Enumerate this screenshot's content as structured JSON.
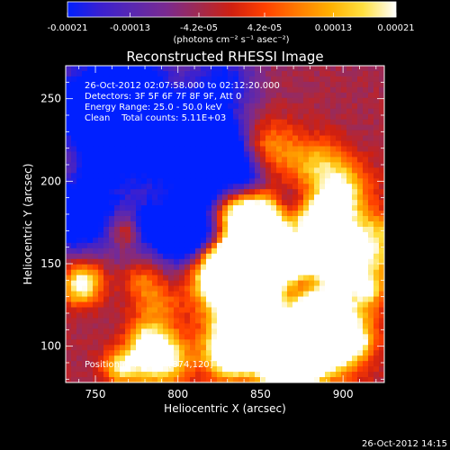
{
  "colorbar": {
    "tick_labels": [
      "-0.00021",
      "-0.00013",
      "-4.2e-05",
      "4.2e-05",
      "0.00013",
      "0.00021"
    ],
    "tick_values": [
      -0.00021,
      -0.00013,
      -4.2e-05,
      4.2e-05,
      0.00013,
      0.00021
    ],
    "range": [
      -0.00021,
      0.00021
    ],
    "unit_label": "(photons cm⁻² s⁻¹ asec⁻²)",
    "colormap": [
      "#0020ff",
      "#3a20d0",
      "#5a28b0",
      "#7a2a90",
      "#a02a50",
      "#d02010",
      "#ff4000",
      "#ff7a00",
      "#ffb000",
      "#ffe040",
      "#ffffff"
    ]
  },
  "chart_data": {
    "type": "heatmap",
    "title": "Reconstructed RHESSI Image",
    "xlabel": "Heliocentric X (arcsec)",
    "ylabel": "Heliocentric Y (arcsec)",
    "xlim": [
      732,
      925
    ],
    "ylim": [
      78,
      270
    ],
    "x_ticks": [
      750,
      800,
      850,
      900
    ],
    "y_ticks": [
      100,
      150,
      200,
      250
    ],
    "peak": [
      874,
      120
    ],
    "intensity_scale": [
      -0.00021,
      0.00021
    ]
  },
  "annotations": {
    "time_range": "26-Oct-2012 02:07:58.000 to 02:12:20.000",
    "detectors": "Detectors: 3F 5F 6F 7F 8F 9F, Att 0",
    "energy_range": "Energy Range: 25.0 - 50.0 keV",
    "method_counts": "Clean    Total counts: 5.11E+03",
    "peak_position": "Position of Peak = [874,120]"
  },
  "footer": {
    "timestamp": "26-Oct-2012 14:15"
  }
}
